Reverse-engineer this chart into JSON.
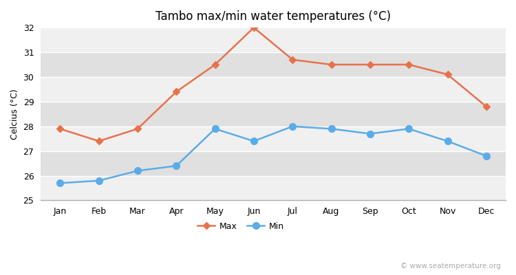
{
  "title": "Tambo max/min water temperatures (°C)",
  "ylabel": "Celcius (°C)",
  "months": [
    "Jan",
    "Feb",
    "Mar",
    "Apr",
    "May",
    "Jun",
    "Jul",
    "Aug",
    "Sep",
    "Oct",
    "Nov",
    "Dec"
  ],
  "max_values": [
    27.9,
    27.4,
    27.9,
    29.4,
    30.5,
    32.0,
    30.7,
    30.5,
    30.5,
    30.5,
    30.1,
    28.8
  ],
  "min_values": [
    25.7,
    25.8,
    26.2,
    26.4,
    27.9,
    27.4,
    28.0,
    27.9,
    27.7,
    27.9,
    27.4,
    26.8
  ],
  "max_color": "#e8714a",
  "min_color": "#5aace8",
  "bg_color": "#ffffff",
  "plot_bg_light": "#f0f0f0",
  "plot_bg_dark": "#e0e0e0",
  "grid_color": "#ffffff",
  "ylim": [
    25,
    32
  ],
  "yticks": [
    25,
    26,
    27,
    28,
    29,
    30,
    31,
    32
  ],
  "watermark": "© www.seatemperature.org",
  "legend_max": "Max",
  "legend_min": "Min",
  "title_fontsize": 12,
  "axis_fontsize": 9,
  "tick_fontsize": 9,
  "legend_fontsize": 9,
  "watermark_fontsize": 7.5
}
